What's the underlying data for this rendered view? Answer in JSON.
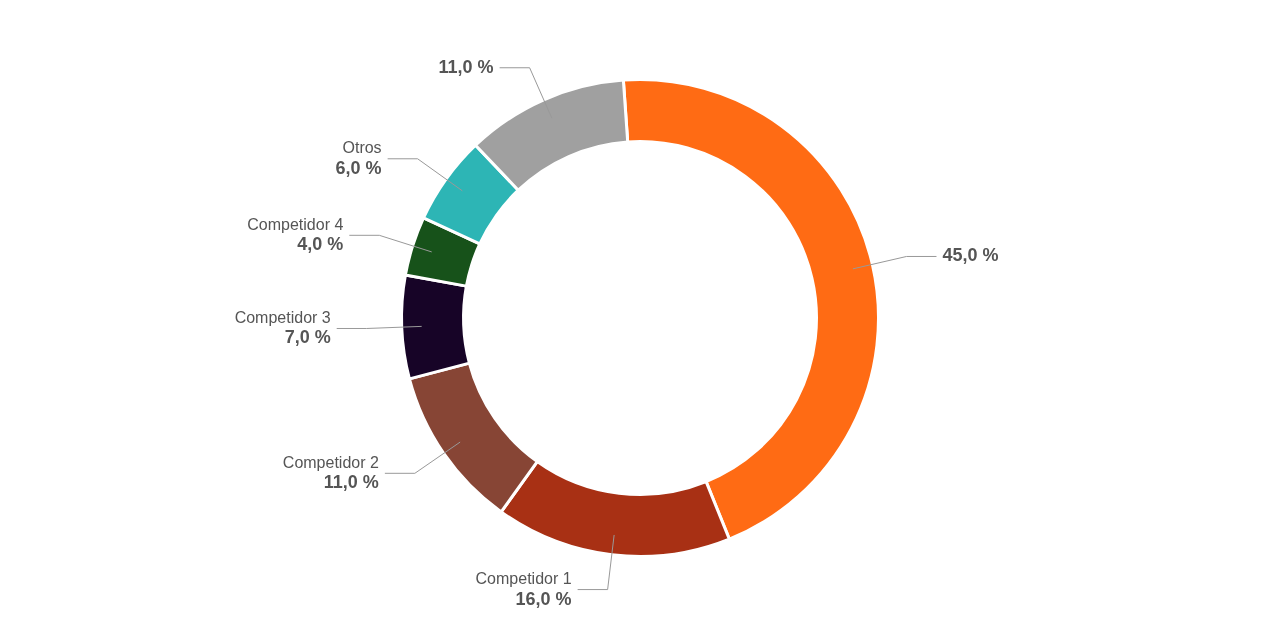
{
  "chart_data": {
    "type": "donut",
    "categories": [
      null,
      "Competidor 1",
      "Competidor 2",
      "Competidor 3",
      "Competidor 4",
      "Otros",
      null
    ],
    "values": [
      45,
      16,
      11,
      7,
      4,
      6,
      11
    ],
    "colors": [
      "#ff6b14",
      "#a83014",
      "#874535",
      "#170427",
      "#17521a",
      "#2db5b5",
      "#a0a0a0"
    ],
    "value_labels": [
      "45,0 %",
      "16,0 %",
      "11,0 %",
      "7,0 %",
      "4,0 %",
      "6,0 %",
      "11,0 %"
    ],
    "legend": false
  }
}
